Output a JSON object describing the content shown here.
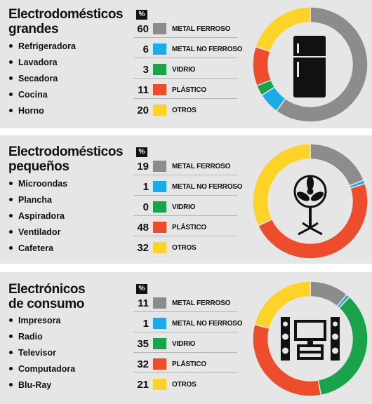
{
  "categories": [
    "METAL FERROSO",
    "METAL NO FERROSO",
    "VIDRIO",
    "PLÁSTICO",
    "OTROS"
  ],
  "percent_header": "%",
  "colors": [
    "#8c8c8c",
    "#1aabe8",
    "#1aa34a",
    "#ee4d2d",
    "#fdd32a"
  ],
  "sections": [
    {
      "title_lines": [
        "Electrodomésticos",
        "grandes"
      ],
      "items": [
        "Refrigeradora",
        "Lavadora",
        "Secadora",
        "Cocina",
        "Horno"
      ],
      "values": [
        60,
        6,
        3,
        11,
        20
      ],
      "icon": "refrigerator-icon"
    },
    {
      "title_lines": [
        "Electrodomésticos",
        "pequeños"
      ],
      "items": [
        "Microondas",
        "Plancha",
        "Aspiradora",
        "Ventilador",
        "Cafetera"
      ],
      "values": [
        19,
        1,
        0,
        48,
        32
      ],
      "icon": "fan-icon"
    },
    {
      "title_lines": [
        "Electrónicos",
        "de consumo"
      ],
      "items": [
        "Impresora",
        "Radio",
        "Televisor",
        "Computadora",
        "Blu-Ray"
      ],
      "values": [
        11,
        1,
        35,
        32,
        21
      ],
      "icon": "home-theater-icon"
    }
  ],
  "chart_data": [
    {
      "type": "pie",
      "title": "Electrodomésticos grandes",
      "categories": [
        "METAL FERROSO",
        "METAL NO FERROSO",
        "VIDRIO",
        "PLÁSTICO",
        "OTROS"
      ],
      "values": [
        60,
        6,
        3,
        11,
        20
      ]
    },
    {
      "type": "pie",
      "title": "Electrodomésticos pequeños",
      "categories": [
        "METAL FERROSO",
        "METAL NO FERROSO",
        "VIDRIO",
        "PLÁSTICO",
        "OTROS"
      ],
      "values": [
        19,
        1,
        0,
        48,
        32
      ]
    },
    {
      "type": "pie",
      "title": "Electrónicos de consumo",
      "categories": [
        "METAL FERROSO",
        "METAL NO FERROSO",
        "VIDRIO",
        "PLÁSTICO",
        "OTROS"
      ],
      "values": [
        11,
        1,
        35,
        32,
        21
      ]
    }
  ]
}
